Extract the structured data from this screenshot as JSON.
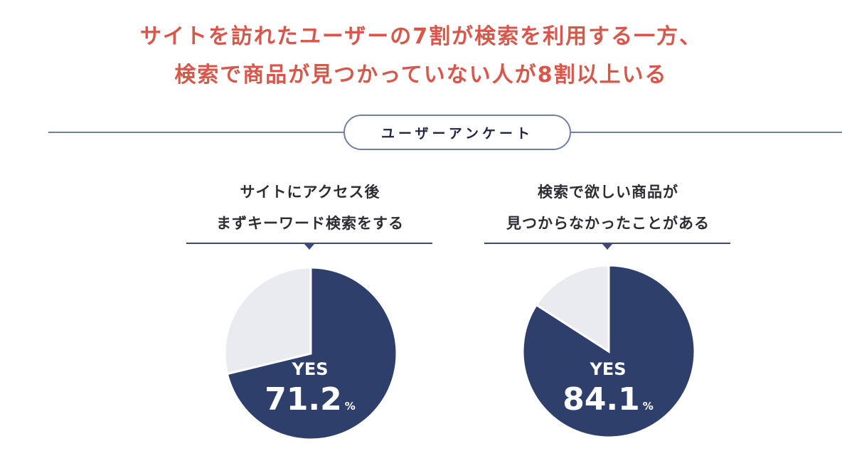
{
  "headline": {
    "line1": "サイトを訪れたユーザーの7割が検索を利用する一方、",
    "line2": "検索で商品が見つかっていない人が8割以上いる"
  },
  "section": {
    "label": "ユーザーアンケート"
  },
  "colors": {
    "headline": "#d9574a",
    "yes": "#2e3f6b",
    "no": "#e9ebf1",
    "rule": "#6f7fa8"
  },
  "chart_data": [
    {
      "type": "pie",
      "title_lines": [
        "サイトにアクセス後",
        "まずキーワード検索をする"
      ],
      "slices": [
        {
          "label": "YES",
          "value": 71.2,
          "color": "#2e3f6b"
        },
        {
          "label": "",
          "value": 28.8,
          "color": "#e9ebf1"
        }
      ],
      "center_label": "YES",
      "value_text": "71.2",
      "unit": "%"
    },
    {
      "type": "pie",
      "title_lines": [
        "検索で欲しい商品が",
        "見つからなかったことがある"
      ],
      "slices": [
        {
          "label": "YES",
          "value": 84.1,
          "color": "#2e3f6b"
        },
        {
          "label": "",
          "value": 15.9,
          "color": "#e9ebf1"
        }
      ],
      "center_label": "YES",
      "value_text": "84.1",
      "unit": "%"
    }
  ]
}
